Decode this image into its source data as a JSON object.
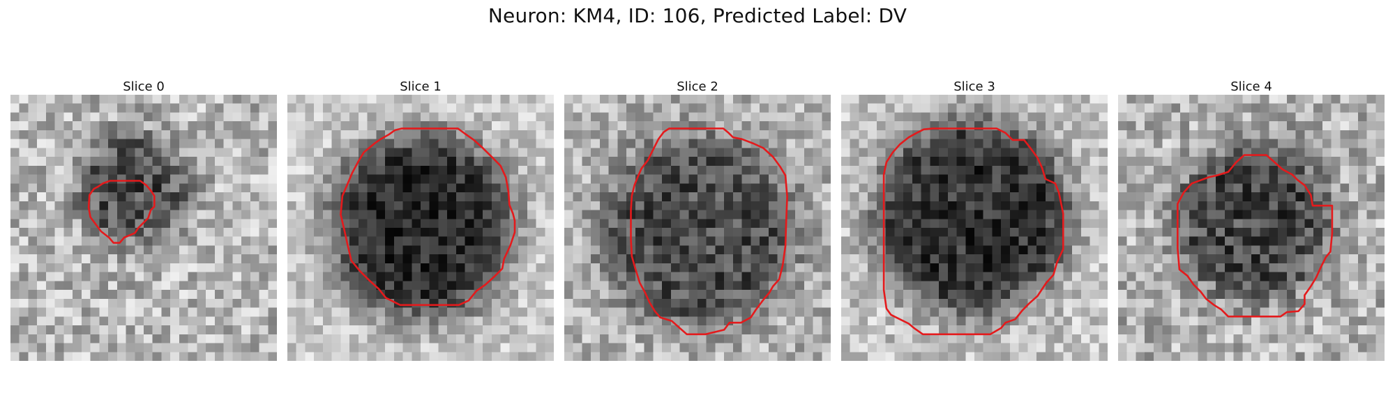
{
  "figure": {
    "title": "Neuron: KM4, ID: 106, Predicted Label: DV"
  },
  "panels": [
    {
      "title": "Slice 0"
    },
    {
      "title": "Slice 1"
    },
    {
      "title": "Slice 2"
    },
    {
      "title": "Slice 3"
    },
    {
      "title": "Slice 4"
    }
  ],
  "colors": {
    "contour": "#e41a1c",
    "background": "#ffffff"
  }
}
